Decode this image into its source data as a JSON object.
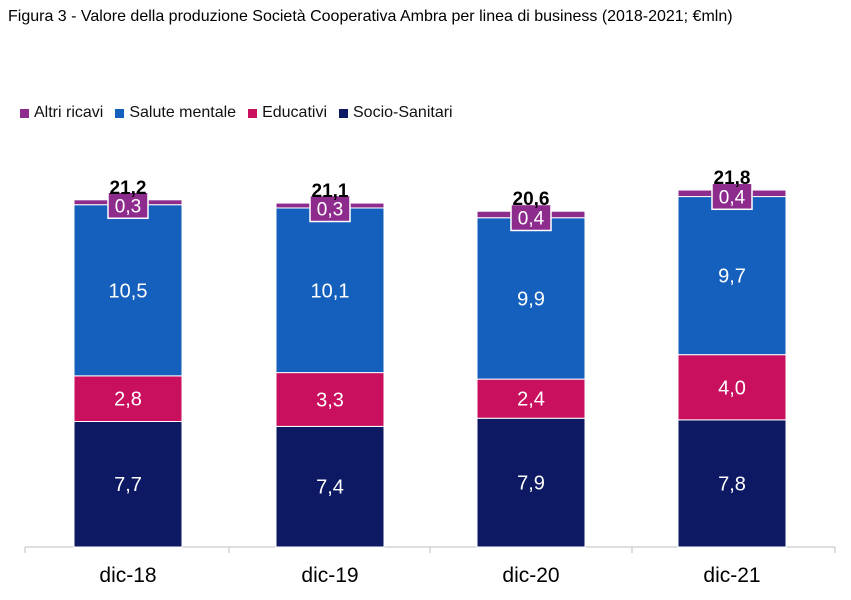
{
  "title": "Figura 3 - Valore della produzione Società Cooperativa Ambra per linea di business (2018-2021; €mln)",
  "legend": [
    {
      "label": "Altri ricavi",
      "color": "#8E2C8E"
    },
    {
      "label": "Salute mentale",
      "color": "#1560BD"
    },
    {
      "label": "Educativi",
      "color": "#C8105F"
    },
    {
      "label": "Socio-Sanitari",
      "color": "#0D1A63"
    }
  ],
  "chart_data": {
    "type": "bar",
    "stacked": true,
    "title": "Figura 3 - Valore della produzione Società Cooperativa Ambra per linea di business (2018-2021; €mln)",
    "categories": [
      "dic-18",
      "dic-19",
      "dic-20",
      "dic-21"
    ],
    "series": [
      {
        "name": "Socio-Sanitari",
        "color": "#0D1A63",
        "values": [
          7.7,
          7.4,
          7.9,
          7.8
        ],
        "labels": [
          "7,7",
          "7,4",
          "7,9",
          "7,8"
        ]
      },
      {
        "name": "Educativi",
        "color": "#C8105F",
        "values": [
          2.8,
          3.3,
          2.4,
          4.0
        ],
        "labels": [
          "2,8",
          "3,3",
          "2,4",
          "4,0"
        ]
      },
      {
        "name": "Salute mentale",
        "color": "#1560BD",
        "values": [
          10.5,
          10.1,
          9.9,
          9.7
        ],
        "labels": [
          "10,5",
          "10,1",
          "9,9",
          "9,7"
        ]
      },
      {
        "name": "Altri ricavi",
        "color": "#8E2C8E",
        "values": [
          0.3,
          0.3,
          0.4,
          0.4
        ],
        "labels": [
          "0,3",
          "0,3",
          "0,4",
          "0,4"
        ]
      }
    ],
    "totals": [
      21.2,
      21.1,
      20.6,
      21.8
    ],
    "total_labels": [
      "21,2",
      "21,1",
      "20,6",
      "21,8"
    ],
    "ylim": [
      0,
      22
    ],
    "legend_position": "top-left",
    "grid": false
  }
}
